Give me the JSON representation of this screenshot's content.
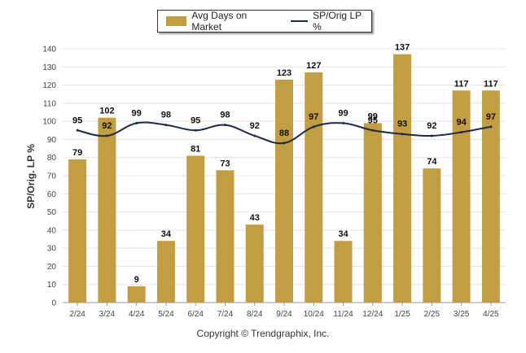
{
  "chart_data": {
    "type": "bar",
    "categories": [
      "2/24",
      "3/24",
      "4/24",
      "5/24",
      "6/24",
      "7/24",
      "8/24",
      "9/24",
      "10/24",
      "11/24",
      "12/24",
      "1/25",
      "2/25",
      "3/25",
      "4/25"
    ],
    "series": [
      {
        "name": "Avg Days on Market",
        "type": "bar",
        "color": "#c29d42",
        "values": [
          79,
          102,
          9,
          34,
          81,
          73,
          43,
          123,
          127,
          34,
          99,
          137,
          74,
          117,
          117
        ]
      },
      {
        "name": "SP/Orig LP %",
        "type": "line",
        "color": "#1b2a4a",
        "values": [
          95,
          92,
          99,
          98,
          95,
          98,
          92,
          88,
          97,
          99,
          95,
          93,
          92,
          94,
          97
        ]
      }
    ],
    "ylabel": "SP/Orig. LP %",
    "ylim": [
      0,
      140
    ],
    "yticks": [
      0,
      10,
      20,
      30,
      40,
      50,
      60,
      70,
      80,
      90,
      100,
      110,
      120,
      130,
      140
    ],
    "grid": true,
    "legend_position": "top-center"
  },
  "footer": {
    "copyright": "Copyright © Trendgraphix, Inc."
  }
}
